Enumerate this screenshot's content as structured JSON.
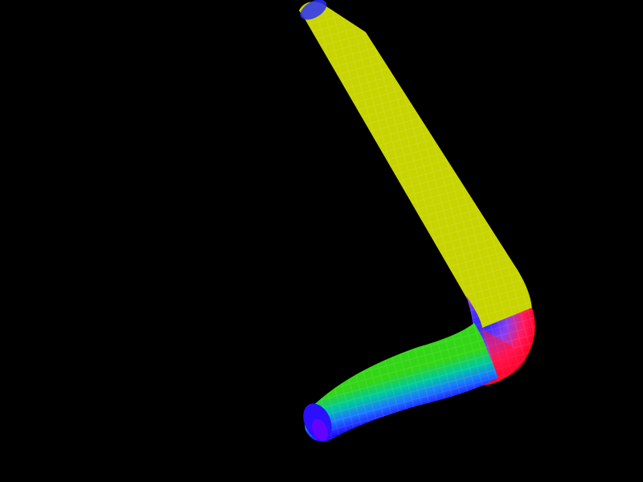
{
  "scene": {
    "background_color": "#000000",
    "object": "bent-tube",
    "shading": "rainbow-normal-colored-mesh",
    "colors": {
      "inner_edge": "#0000ff",
      "upper_outer_edge": "#c8d400",
      "bend_outer_edge": "#ff0022",
      "lower_outer_edge": "#33d616",
      "end_cap": "#7a00ff"
    }
  }
}
